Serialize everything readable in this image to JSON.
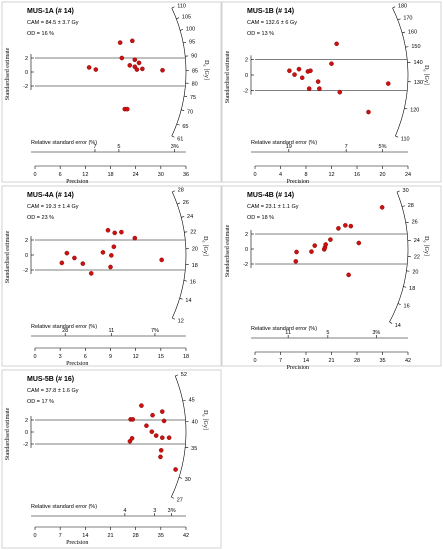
{
  "y_axis_label": "Standardised estimate",
  "dose_label_main": "D",
  "dose_label_sub": "e",
  "dose_label_unit": "[Gy]",
  "re_label": "Relative standard error (%)",
  "precision_label": "Precision",
  "band_ticks": [
    "2",
    "0",
    "-2"
  ],
  "colors": {
    "point": "#cc1111",
    "point_edge": "#7a0000",
    "axis": "#000000",
    "frame": "#c8c8c8"
  },
  "chart_data": [
    {
      "type": "scatter",
      "title": "MUS-1A (# 14)",
      "cam_line": "CAM = 84.5 ± 3.7  Gy",
      "od_line": "OD = 16 %",
      "x_ticks": [
        "0",
        "6",
        "12",
        "18",
        "24",
        "30",
        "36"
      ],
      "xlim": [
        0,
        36
      ],
      "re_ticks": [
        {
          "label": "7",
          "precision": 14.3
        },
        {
          "label": "5",
          "precision": 20
        },
        {
          "label": "3%",
          "precision": 33.3
        }
      ],
      "arc_ticks": [
        "61",
        "65",
        "70",
        "75",
        "80",
        "85",
        "90",
        "95",
        "100",
        "105",
        "110"
      ],
      "dlim": [
        61,
        110
      ],
      "central_value": 84.5,
      "points": [
        {
          "x": 12.9,
          "y": 0.65
        },
        {
          "x": 14.5,
          "y": 0.35
        },
        {
          "x": 20.3,
          "y": 4.2
        },
        {
          "x": 20.7,
          "y": 2.0
        },
        {
          "x": 22.6,
          "y": 0.95
        },
        {
          "x": 23.2,
          "y": 4.45
        },
        {
          "x": 23.8,
          "y": 1.75
        },
        {
          "x": 23.8,
          "y": 0.75
        },
        {
          "x": 24.3,
          "y": 0.35
        },
        {
          "x": 25.6,
          "y": 0.45
        },
        {
          "x": 30.4,
          "y": 0.25
        },
        {
          "x": 21.4,
          "y": -5.3
        },
        {
          "x": 22.0,
          "y": -5.3
        },
        {
          "x": 24.8,
          "y": 1.3
        }
      ]
    },
    {
      "type": "scatter",
      "title": "MUS-1B (# 14)",
      "cam_line": "CAM = 132.6 ± 6  Gy",
      "od_line": "OD = 13 %",
      "x_ticks": [
        "0",
        "4",
        "8",
        "12",
        "16",
        "20",
        "24"
      ],
      "xlim": [
        0,
        24
      ],
      "re_ticks": [
        {
          "label": "19",
          "precision": 5.3
        },
        {
          "label": "7",
          "precision": 14.3
        },
        {
          "label": "5%",
          "precision": 20
        }
      ],
      "arc_ticks": [
        "110",
        "120",
        "130",
        "140",
        "150",
        "160",
        "170",
        "180"
      ],
      "dlim": [
        110,
        180
      ],
      "central_value": 132.6,
      "points": [
        {
          "x": 5.4,
          "y": 0.55
        },
        {
          "x": 6.2,
          "y": 0.05
        },
        {
          "x": 6.9,
          "y": 0.75
        },
        {
          "x": 7.4,
          "y": -0.35
        },
        {
          "x": 8.3,
          "y": 0.45
        },
        {
          "x": 8.5,
          "y": -1.75
        },
        {
          "x": 8.7,
          "y": 0.55
        },
        {
          "x": 9.9,
          "y": -0.85
        },
        {
          "x": 10.1,
          "y": -1.75
        },
        {
          "x": 12.0,
          "y": 1.45
        },
        {
          "x": 12.8,
          "y": 4.0
        },
        {
          "x": 13.3,
          "y": -2.2
        },
        {
          "x": 17.8,
          "y": -4.75
        },
        {
          "x": 20.9,
          "y": -1.1
        }
      ]
    },
    {
      "type": "scatter",
      "title": "MUS-4A (# 14)",
      "cam_line": "CAM = 19.3 ± 1.4  Gy",
      "od_line": "OD = 23 %",
      "x_ticks": [
        "0",
        "3",
        "6",
        "9",
        "12",
        "15",
        "18"
      ],
      "xlim": [
        0,
        18
      ],
      "re_ticks": [
        {
          "label": "28",
          "precision": 3.6
        },
        {
          "label": "11",
          "precision": 9.1
        },
        {
          "label": "7%",
          "precision": 14.3
        }
      ],
      "arc_ticks": [
        "12",
        "14",
        "16",
        "18",
        "20",
        "22",
        "24",
        "26",
        "28"
      ],
      "dlim": [
        12,
        28
      ],
      "central_value": 19.3,
      "points": [
        {
          "x": 3.2,
          "y": -1.05
        },
        {
          "x": 3.8,
          "y": 0.25
        },
        {
          "x": 4.7,
          "y": -0.4
        },
        {
          "x": 5.7,
          "y": -1.15
        },
        {
          "x": 6.7,
          "y": -2.45
        },
        {
          "x": 8.1,
          "y": 0.35
        },
        {
          "x": 8.7,
          "y": 3.3
        },
        {
          "x": 9.1,
          "y": -0.05
        },
        {
          "x": 9.4,
          "y": 1.1
        },
        {
          "x": 9.5,
          "y": 2.95
        },
        {
          "x": 10.3,
          "y": 3.05
        },
        {
          "x": 11.9,
          "y": 2.25
        },
        {
          "x": 15.1,
          "y": -0.65
        },
        {
          "x": 9.0,
          "y": -1.6
        }
      ]
    },
    {
      "type": "scatter",
      "title": "MUS-4B (# 14)",
      "cam_line": "CAM = 23.1 ± 1.1  Gy",
      "od_line": "OD = 18 %",
      "x_ticks": [
        "0",
        "7",
        "14",
        "21",
        "28",
        "35",
        "42"
      ],
      "xlim": [
        0,
        42
      ],
      "re_ticks": [
        {
          "label": "11",
          "precision": 9.1
        },
        {
          "label": "5",
          "precision": 20
        },
        {
          "label": "3%",
          "precision": 33.3
        }
      ],
      "arc_ticks": [
        "14",
        "16",
        "18",
        "20",
        "22",
        "24",
        "26",
        "28",
        "30"
      ],
      "dlim": [
        14,
        30
      ],
      "central_value": 23.1,
      "points": [
        {
          "x": 11.2,
          "y": -1.65
        },
        {
          "x": 11.4,
          "y": -0.4
        },
        {
          "x": 15.5,
          "y": -0.35
        },
        {
          "x": 16.4,
          "y": 0.45
        },
        {
          "x": 19.0,
          "y": -0.05
        },
        {
          "x": 19.2,
          "y": 0.2
        },
        {
          "x": 20.7,
          "y": 1.25
        },
        {
          "x": 22.9,
          "y": 2.75
        },
        {
          "x": 24.8,
          "y": 3.15
        },
        {
          "x": 25.7,
          "y": -3.45
        },
        {
          "x": 26.3,
          "y": 3.05
        },
        {
          "x": 28.5,
          "y": 0.8
        },
        {
          "x": 34.9,
          "y": 5.55
        },
        {
          "x": 19.4,
          "y": 0.6
        }
      ]
    },
    {
      "type": "scatter",
      "title": "MUS-5B (# 16)",
      "cam_line": "CAM = 37.8 ± 1.6  Gy",
      "od_line": "OD = 17 %",
      "x_ticks": [
        "0",
        "7",
        "14",
        "21",
        "28",
        "35",
        "42"
      ],
      "xlim": [
        0,
        42
      ],
      "re_ticks": [
        {
          "label": "4",
          "precision": 25
        },
        {
          "label": "3",
          "precision": 33.3
        },
        {
          "label": "3%",
          "precision": 38
        }
      ],
      "arc_ticks": [
        "27",
        "30",
        "35",
        "40",
        "45",
        "52"
      ],
      "dlim": [
        27,
        52
      ],
      "central_value": 37.8,
      "points": [
        {
          "x": 26.6,
          "y": 2.1
        },
        {
          "x": 27.2,
          "y": 2.1
        },
        {
          "x": 26.4,
          "y": -1.55
        },
        {
          "x": 27.0,
          "y": -1.05
        },
        {
          "x": 29.6,
          "y": 4.4
        },
        {
          "x": 31.0,
          "y": 1.05
        },
        {
          "x": 32.5,
          "y": 0.05
        },
        {
          "x": 32.7,
          "y": 2.8
        },
        {
          "x": 33.7,
          "y": -0.6
        },
        {
          "x": 34.9,
          "y": -4.15
        },
        {
          "x": 35.4,
          "y": 3.4
        },
        {
          "x": 35.9,
          "y": 1.85
        },
        {
          "x": 35.4,
          "y": -0.95
        },
        {
          "x": 35.1,
          "y": -3.05
        },
        {
          "x": 37.3,
          "y": -0.95
        },
        {
          "x": 39.1,
          "y": -6.25
        }
      ]
    }
  ]
}
